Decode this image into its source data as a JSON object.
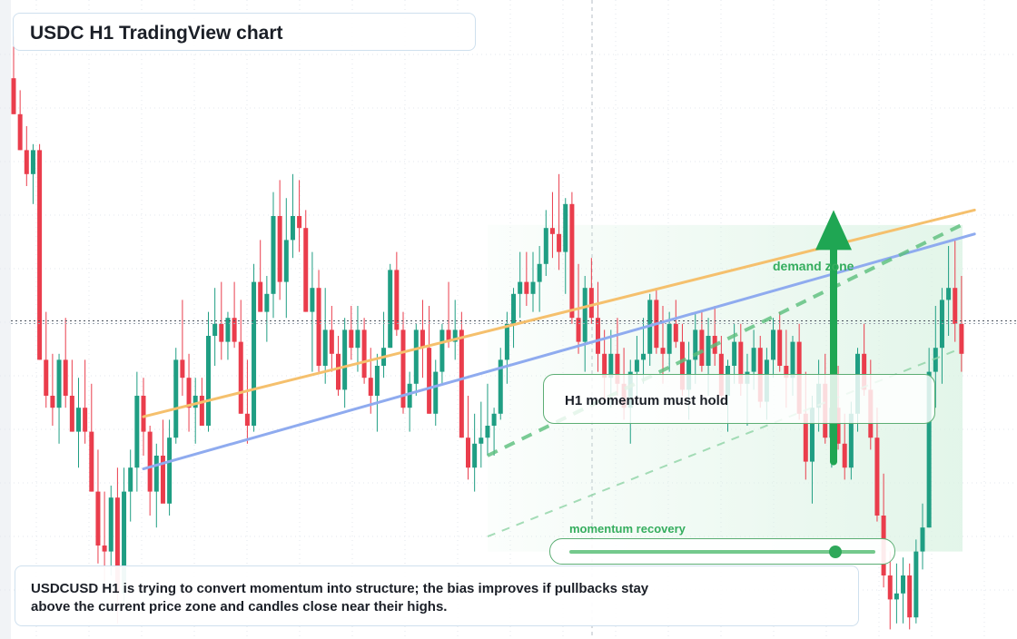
{
  "title": "USDC H1 TradingView chart",
  "callout": {
    "text": "H1 momentum must hold"
  },
  "zone": {
    "label": "demand zone"
  },
  "momentum": {
    "label": "momentum recovery",
    "level": 0.87
  },
  "note": {
    "text": "USDCUSD H1 is trying to convert momentum into structure; the bias improves if pullbacks stay above the current price zone and candles close near their highs."
  },
  "colors": {
    "up": "#1f9e83",
    "down": "#ea3d4c",
    "orange": "#f5c06d",
    "blue": "#8fabef",
    "green": "#35ad5e",
    "grid": "#e3e7ee"
  },
  "chart_data": {
    "type": "candlestick",
    "timeframe": "H1",
    "symbol": "USDCUSD",
    "ylim": [
      0,
      100
    ],
    "grid": true,
    "current_price": 52.5,
    "candles": [
      {
        "o": 93,
        "h": 100,
        "l": 87,
        "c": 87
      },
      {
        "o": 87,
        "h": 91,
        "l": 81,
        "c": 81
      },
      {
        "o": 81,
        "h": 85,
        "l": 75,
        "c": 77
      },
      {
        "o": 77,
        "h": 82,
        "l": 72,
        "c": 81
      },
      {
        "o": 81,
        "h": 82,
        "l": 46,
        "c": 46
      },
      {
        "o": 46,
        "h": 54,
        "l": 38,
        "c": 40
      },
      {
        "o": 40,
        "h": 47,
        "l": 35,
        "c": 38
      },
      {
        "o": 38,
        "h": 47,
        "l": 32,
        "c": 46
      },
      {
        "o": 46,
        "h": 53,
        "l": 38,
        "c": 40
      },
      {
        "o": 40,
        "h": 46,
        "l": 34,
        "c": 34
      },
      {
        "o": 34,
        "h": 43,
        "l": 28,
        "c": 38
      },
      {
        "o": 38,
        "h": 46,
        "l": 32,
        "c": 34
      },
      {
        "o": 34,
        "h": 42,
        "l": 24,
        "c": 24
      },
      {
        "o": 24,
        "h": 31,
        "l": 12,
        "c": 15
      },
      {
        "o": 15,
        "h": 24,
        "l": 8,
        "c": 14
      },
      {
        "o": 14,
        "h": 25,
        "l": 10,
        "c": 23
      },
      {
        "o": 23,
        "h": 28,
        "l": 2,
        "c": 7
      },
      {
        "o": 7,
        "h": 28,
        "l": 4,
        "c": 24
      },
      {
        "o": 24,
        "h": 31,
        "l": 19,
        "c": 28
      },
      {
        "o": 28,
        "h": 44,
        "l": 24,
        "c": 40
      },
      {
        "o": 40,
        "h": 43,
        "l": 30,
        "c": 34
      },
      {
        "o": 34,
        "h": 35,
        "l": 20,
        "c": 24
      },
      {
        "o": 24,
        "h": 32,
        "l": 18,
        "c": 30
      },
      {
        "o": 30,
        "h": 36,
        "l": 23,
        "c": 22
      },
      {
        "o": 22,
        "h": 36,
        "l": 20,
        "c": 33
      },
      {
        "o": 33,
        "h": 48,
        "l": 32,
        "c": 46
      },
      {
        "o": 46,
        "h": 56,
        "l": 40,
        "c": 43
      },
      {
        "o": 43,
        "h": 47,
        "l": 34,
        "c": 38
      },
      {
        "o": 38,
        "h": 43,
        "l": 32,
        "c": 40
      },
      {
        "o": 40,
        "h": 43,
        "l": 35,
        "c": 35
      },
      {
        "o": 35,
        "h": 54,
        "l": 34,
        "c": 50
      },
      {
        "o": 50,
        "h": 58,
        "l": 45,
        "c": 52
      },
      {
        "o": 52,
        "h": 59,
        "l": 46,
        "c": 49
      },
      {
        "o": 49,
        "h": 54,
        "l": 46,
        "c": 53
      },
      {
        "o": 53,
        "h": 59,
        "l": 48,
        "c": 49
      },
      {
        "o": 49,
        "h": 56,
        "l": 37,
        "c": 37
      },
      {
        "o": 37,
        "h": 46,
        "l": 32,
        "c": 35
      },
      {
        "o": 35,
        "h": 62,
        "l": 34,
        "c": 59
      },
      {
        "o": 59,
        "h": 66,
        "l": 54,
        "c": 54
      },
      {
        "o": 54,
        "h": 60,
        "l": 49,
        "c": 57
      },
      {
        "o": 57,
        "h": 74,
        "l": 53,
        "c": 70
      },
      {
        "o": 70,
        "h": 76,
        "l": 56,
        "c": 59
      },
      {
        "o": 59,
        "h": 73,
        "l": 53,
        "c": 66
      },
      {
        "o": 66,
        "h": 77,
        "l": 63,
        "c": 70
      },
      {
        "o": 70,
        "h": 76,
        "l": 64,
        "c": 68
      },
      {
        "o": 68,
        "h": 71,
        "l": 54,
        "c": 54
      },
      {
        "o": 54,
        "h": 64,
        "l": 44,
        "c": 58
      },
      {
        "o": 58,
        "h": 61,
        "l": 44,
        "c": 45
      },
      {
        "o": 45,
        "h": 58,
        "l": 42,
        "c": 51
      },
      {
        "o": 51,
        "h": 55,
        "l": 44,
        "c": 47
      },
      {
        "o": 47,
        "h": 50,
        "l": 40,
        "c": 41
      },
      {
        "o": 41,
        "h": 53,
        "l": 38,
        "c": 51
      },
      {
        "o": 51,
        "h": 55,
        "l": 46,
        "c": 48
      },
      {
        "o": 48,
        "h": 55,
        "l": 44,
        "c": 51
      },
      {
        "o": 51,
        "h": 53,
        "l": 42,
        "c": 43
      },
      {
        "o": 43,
        "h": 48,
        "l": 37,
        "c": 40
      },
      {
        "o": 40,
        "h": 47,
        "l": 34,
        "c": 45
      },
      {
        "o": 45,
        "h": 54,
        "l": 43,
        "c": 48
      },
      {
        "o": 48,
        "h": 62,
        "l": 48,
        "c": 61
      },
      {
        "o": 61,
        "h": 64,
        "l": 50,
        "c": 51
      },
      {
        "o": 51,
        "h": 54,
        "l": 37,
        "c": 38
      },
      {
        "o": 38,
        "h": 44,
        "l": 34,
        "c": 42
      },
      {
        "o": 42,
        "h": 52,
        "l": 40,
        "c": 51
      },
      {
        "o": 51,
        "h": 56,
        "l": 43,
        "c": 48
      },
      {
        "o": 48,
        "h": 55,
        "l": 37,
        "c": 37
      },
      {
        "o": 37,
        "h": 46,
        "l": 35,
        "c": 44
      },
      {
        "o": 44,
        "h": 52,
        "l": 42,
        "c": 51
      },
      {
        "o": 51,
        "h": 59,
        "l": 48,
        "c": 49
      },
      {
        "o": 49,
        "h": 56,
        "l": 46,
        "c": 51
      },
      {
        "o": 51,
        "h": 54,
        "l": 33,
        "c": 33
      },
      {
        "o": 33,
        "h": 40,
        "l": 26,
        "c": 28
      },
      {
        "o": 28,
        "h": 37,
        "l": 24,
        "c": 32
      },
      {
        "o": 32,
        "h": 39,
        "l": 28,
        "c": 33
      },
      {
        "o": 33,
        "h": 42,
        "l": 30,
        "c": 35
      },
      {
        "o": 35,
        "h": 38,
        "l": 30,
        "c": 37
      },
      {
        "o": 37,
        "h": 48,
        "l": 36,
        "c": 46
      },
      {
        "o": 46,
        "h": 54,
        "l": 42,
        "c": 52
      },
      {
        "o": 52,
        "h": 58,
        "l": 48,
        "c": 57
      },
      {
        "o": 57,
        "h": 64,
        "l": 53,
        "c": 59
      },
      {
        "o": 59,
        "h": 64,
        "l": 55,
        "c": 57
      },
      {
        "o": 57,
        "h": 64,
        "l": 54,
        "c": 59
      },
      {
        "o": 59,
        "h": 65,
        "l": 54,
        "c": 62
      },
      {
        "o": 62,
        "h": 71,
        "l": 60,
        "c": 68
      },
      {
        "o": 68,
        "h": 74,
        "l": 63,
        "c": 67
      },
      {
        "o": 67,
        "h": 77,
        "l": 61,
        "c": 64
      },
      {
        "o": 64,
        "h": 73,
        "l": 57,
        "c": 72
      },
      {
        "o": 72,
        "h": 74,
        "l": 52,
        "c": 53
      },
      {
        "o": 53,
        "h": 62,
        "l": 47,
        "c": 49
      },
      {
        "o": 49,
        "h": 60,
        "l": 44,
        "c": 58
      },
      {
        "o": 58,
        "h": 63,
        "l": 52,
        "c": 53
      },
      {
        "o": 53,
        "h": 59,
        "l": 44,
        "c": 47
      },
      {
        "o": 47,
        "h": 51,
        "l": 39,
        "c": 43
      },
      {
        "o": 43,
        "h": 51,
        "l": 38,
        "c": 47
      },
      {
        "o": 47,
        "h": 53,
        "l": 40,
        "c": 42
      },
      {
        "o": 42,
        "h": 48,
        "l": 36,
        "c": 38
      },
      {
        "o": 38,
        "h": 46,
        "l": 32,
        "c": 44
      },
      {
        "o": 44,
        "h": 50,
        "l": 40,
        "c": 46
      },
      {
        "o": 46,
        "h": 53,
        "l": 42,
        "c": 47
      },
      {
        "o": 47,
        "h": 57,
        "l": 45,
        "c": 56
      },
      {
        "o": 56,
        "h": 58,
        "l": 47,
        "c": 48
      },
      {
        "o": 48,
        "h": 55,
        "l": 42,
        "c": 47
      },
      {
        "o": 47,
        "h": 54,
        "l": 44,
        "c": 52
      },
      {
        "o": 52,
        "h": 56,
        "l": 48,
        "c": 49
      },
      {
        "o": 49,
        "h": 52,
        "l": 40,
        "c": 41
      },
      {
        "o": 41,
        "h": 49,
        "l": 36,
        "c": 46
      },
      {
        "o": 46,
        "h": 54,
        "l": 42,
        "c": 51
      },
      {
        "o": 51,
        "h": 54,
        "l": 44,
        "c": 45
      },
      {
        "o": 45,
        "h": 53,
        "l": 40,
        "c": 50
      },
      {
        "o": 50,
        "h": 55,
        "l": 45,
        "c": 47
      },
      {
        "o": 47,
        "h": 50,
        "l": 39,
        "c": 40
      },
      {
        "o": 40,
        "h": 46,
        "l": 34,
        "c": 45
      },
      {
        "o": 45,
        "h": 52,
        "l": 42,
        "c": 49
      },
      {
        "o": 49,
        "h": 52,
        "l": 40,
        "c": 42
      },
      {
        "o": 42,
        "h": 47,
        "l": 35,
        "c": 44
      },
      {
        "o": 44,
        "h": 51,
        "l": 41,
        "c": 48
      },
      {
        "o": 48,
        "h": 50,
        "l": 38,
        "c": 39
      },
      {
        "o": 39,
        "h": 48,
        "l": 36,
        "c": 46
      },
      {
        "o": 46,
        "h": 53,
        "l": 43,
        "c": 51
      },
      {
        "o": 51,
        "h": 54,
        "l": 44,
        "c": 45
      },
      {
        "o": 45,
        "h": 51,
        "l": 38,
        "c": 43
      },
      {
        "o": 43,
        "h": 50,
        "l": 40,
        "c": 49
      },
      {
        "o": 49,
        "h": 52,
        "l": 36,
        "c": 37
      },
      {
        "o": 37,
        "h": 44,
        "l": 26,
        "c": 29
      },
      {
        "o": 29,
        "h": 40,
        "l": 22,
        "c": 38
      },
      {
        "o": 38,
        "h": 46,
        "l": 34,
        "c": 42
      },
      {
        "o": 42,
        "h": 47,
        "l": 32,
        "c": 33
      },
      {
        "o": 33,
        "h": 41,
        "l": 28,
        "c": 38
      },
      {
        "o": 38,
        "h": 45,
        "l": 31,
        "c": 32
      },
      {
        "o": 32,
        "h": 37,
        "l": 26,
        "c": 28
      },
      {
        "o": 28,
        "h": 39,
        "l": 26,
        "c": 37
      },
      {
        "o": 37,
        "h": 48,
        "l": 34,
        "c": 47
      },
      {
        "o": 47,
        "h": 52,
        "l": 40,
        "c": 41
      },
      {
        "o": 41,
        "h": 46,
        "l": 31,
        "c": 33
      },
      {
        "o": 33,
        "h": 38,
        "l": 19,
        "c": 20
      },
      {
        "o": 20,
        "h": 27,
        "l": 8,
        "c": 10
      },
      {
        "o": 10,
        "h": 14,
        "l": 1,
        "c": 6
      },
      {
        "o": 6,
        "h": 12,
        "l": 2,
        "c": 7
      },
      {
        "o": 7,
        "h": 13,
        "l": 2,
        "c": 10
      },
      {
        "o": 10,
        "h": 12,
        "l": 1,
        "c": 3
      },
      {
        "o": 3,
        "h": 16,
        "l": 2,
        "c": 14
      },
      {
        "o": 14,
        "h": 22,
        "l": 11,
        "c": 18
      },
      {
        "o": 18,
        "h": 48,
        "l": 18,
        "c": 44
      },
      {
        "o": 44,
        "h": 55,
        "l": 38,
        "c": 48
      },
      {
        "o": 48,
        "h": 58,
        "l": 42,
        "c": 56
      },
      {
        "o": 56,
        "h": 65,
        "l": 50,
        "c": 58
      },
      {
        "o": 58,
        "h": 66,
        "l": 49,
        "c": 52
      },
      {
        "o": 52,
        "h": 60,
        "l": 44,
        "c": 47
      }
    ],
    "trendlines": [
      {
        "style": "solid",
        "color": "orange",
        "start": {
          "i": 20,
          "y": 36.5
        },
        "end": {
          "i": 148,
          "y": 71
        }
      },
      {
        "style": "solid",
        "color": "blue",
        "start": {
          "i": 20,
          "y": 27.8
        },
        "end": {
          "i": 148,
          "y": 67
        }
      },
      {
        "style": "dashed",
        "color": "green",
        "start": {
          "i": 73,
          "y": 30
        }
      },
      {
        "style": "dashed-faint",
        "color": "green",
        "start": {
          "i": 73,
          "y": 16.5
        }
      }
    ],
    "demand_zone": {
      "label": "demand zone",
      "y_range": [
        14,
        68.5
      ]
    },
    "arrow": {
      "direction": "up",
      "from_y": 29,
      "to_y": 71
    }
  }
}
